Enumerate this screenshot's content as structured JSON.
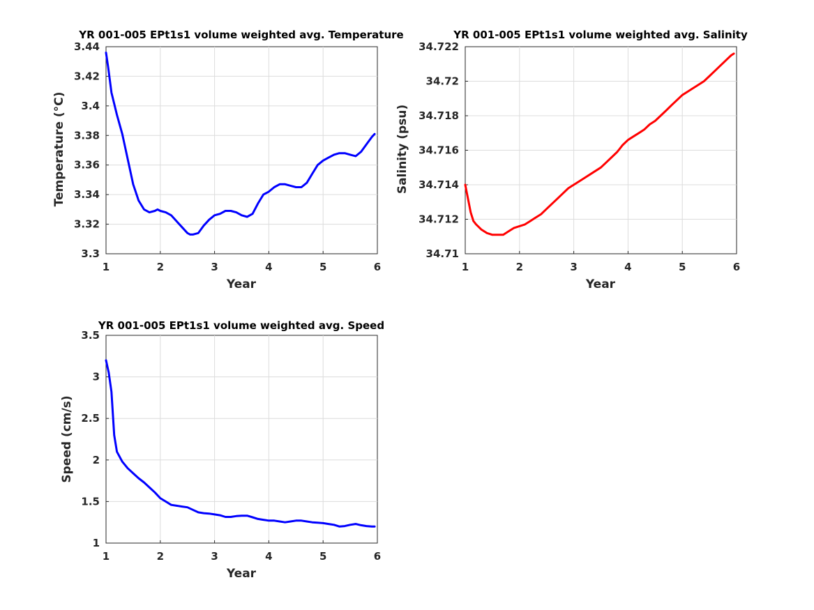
{
  "chart_data": [
    {
      "type": "line",
      "title": "YR 001-005 EPt1s1 volume weighted avg. Temperature",
      "xlabel": "Year",
      "ylabel": "Temperature (°C)",
      "xlim": [
        1,
        6
      ],
      "ylim": [
        3.3,
        3.44
      ],
      "xticks": [
        "1",
        "2",
        "3",
        "4",
        "5",
        "6"
      ],
      "yticks": [
        "3.3",
        "3.32",
        "3.34",
        "3.36",
        "3.38",
        "3.4",
        "3.42",
        "3.44"
      ],
      "grid": true,
      "color": "#0000ff",
      "series": [
        {
          "x": [
            1.0,
            1.04,
            1.1,
            1.2,
            1.3,
            1.4,
            1.5,
            1.6,
            1.7,
            1.8,
            1.9,
            1.95,
            2.0,
            2.1,
            2.2,
            2.3,
            2.4,
            2.5,
            2.55,
            2.6,
            2.7,
            2.8,
            2.9,
            3.0,
            3.1,
            3.2,
            3.3,
            3.4,
            3.5,
            3.6,
            3.7,
            3.8,
            3.9,
            4.0,
            4.1,
            4.2,
            4.3,
            4.4,
            4.5,
            4.6,
            4.7,
            4.8,
            4.9,
            5.0,
            5.1,
            5.2,
            5.3,
            5.4,
            5.5,
            5.6,
            5.7,
            5.8,
            5.9,
            5.95
          ],
          "y": [
            3.436,
            3.426,
            3.409,
            3.394,
            3.381,
            3.364,
            3.347,
            3.336,
            3.33,
            3.328,
            3.329,
            3.33,
            3.329,
            3.328,
            3.326,
            3.322,
            3.318,
            3.314,
            3.313,
            3.313,
            3.314,
            3.319,
            3.323,
            3.326,
            3.327,
            3.329,
            3.329,
            3.328,
            3.326,
            3.325,
            3.327,
            3.334,
            3.34,
            3.342,
            3.345,
            3.347,
            3.347,
            3.346,
            3.345,
            3.345,
            3.348,
            3.354,
            3.36,
            3.363,
            3.365,
            3.367,
            3.368,
            3.368,
            3.367,
            3.366,
            3.369,
            3.374,
            3.379,
            3.381
          ]
        }
      ]
    },
    {
      "type": "line",
      "title": "YR 001-005 EPt1s1 volume weighted avg. Salinity",
      "xlabel": "Year",
      "ylabel": "Salinity (psu)",
      "xlim": [
        1,
        6
      ],
      "ylim": [
        34.71,
        34.722
      ],
      "xticks": [
        "1",
        "2",
        "3",
        "4",
        "5",
        "6"
      ],
      "yticks": [
        "34.71",
        "34.712",
        "34.714",
        "34.716",
        "34.718",
        "34.72",
        "34.722"
      ],
      "grid": true,
      "color": "#ff0000",
      "series": [
        {
          "x": [
            1.0,
            1.05,
            1.1,
            1.15,
            1.2,
            1.3,
            1.4,
            1.5,
            1.6,
            1.7,
            1.8,
            1.9,
            2.0,
            2.1,
            2.2,
            2.3,
            2.4,
            2.5,
            2.6,
            2.7,
            2.8,
            2.9,
            3.0,
            3.1,
            3.2,
            3.3,
            3.4,
            3.5,
            3.6,
            3.7,
            3.8,
            3.9,
            4.0,
            4.1,
            4.2,
            4.3,
            4.4,
            4.5,
            4.6,
            4.7,
            4.8,
            4.9,
            5.0,
            5.1,
            5.2,
            5.3,
            5.4,
            5.5,
            5.6,
            5.7,
            5.8,
            5.9,
            5.95
          ],
          "y": [
            34.714,
            34.7132,
            34.7124,
            34.7119,
            34.7117,
            34.7114,
            34.7112,
            34.7111,
            34.7111,
            34.7111,
            34.7113,
            34.7115,
            34.7116,
            34.7117,
            34.7119,
            34.7121,
            34.7123,
            34.7126,
            34.7129,
            34.7132,
            34.7135,
            34.7138,
            34.714,
            34.7142,
            34.7144,
            34.7146,
            34.7148,
            34.715,
            34.7153,
            34.7156,
            34.7159,
            34.7163,
            34.7166,
            34.7168,
            34.717,
            34.7172,
            34.7175,
            34.7177,
            34.718,
            34.7183,
            34.7186,
            34.7189,
            34.7192,
            34.7194,
            34.7196,
            34.7198,
            34.72,
            34.7203,
            34.7206,
            34.7209,
            34.7212,
            34.7215,
            34.7216
          ]
        }
      ]
    },
    {
      "type": "line",
      "title": "YR 001-005 EPt1s1 volume weighted avg. Speed",
      "xlabel": "Year",
      "ylabel": "Speed (cm/s)",
      "xlim": [
        1,
        6
      ],
      "ylim": [
        1,
        3.5
      ],
      "xticks": [
        "1",
        "2",
        "3",
        "4",
        "5",
        "6"
      ],
      "yticks": [
        "1",
        "1.5",
        "2",
        "2.5",
        "3",
        "3.5"
      ],
      "grid": true,
      "color": "#0000ff",
      "series": [
        {
          "x": [
            1.0,
            1.05,
            1.1,
            1.15,
            1.2,
            1.3,
            1.4,
            1.5,
            1.6,
            1.7,
            1.8,
            1.9,
            2.0,
            2.1,
            2.2,
            2.3,
            2.4,
            2.5,
            2.6,
            2.7,
            2.8,
            2.9,
            3.0,
            3.1,
            3.2,
            3.3,
            3.4,
            3.5,
            3.6,
            3.7,
            3.8,
            3.9,
            4.0,
            4.1,
            4.2,
            4.3,
            4.4,
            4.5,
            4.6,
            4.7,
            4.8,
            4.9,
            5.0,
            5.1,
            5.2,
            5.3,
            5.4,
            5.5,
            5.6,
            5.7,
            5.8,
            5.9,
            5.95
          ],
          "y": [
            3.2,
            3.05,
            2.82,
            2.3,
            2.1,
            1.98,
            1.9,
            1.84,
            1.78,
            1.73,
            1.67,
            1.61,
            1.54,
            1.5,
            1.46,
            1.45,
            1.44,
            1.43,
            1.4,
            1.37,
            1.36,
            1.355,
            1.345,
            1.335,
            1.315,
            1.315,
            1.325,
            1.33,
            1.33,
            1.31,
            1.29,
            1.28,
            1.27,
            1.27,
            1.26,
            1.25,
            1.26,
            1.27,
            1.27,
            1.26,
            1.25,
            1.245,
            1.24,
            1.23,
            1.22,
            1.2,
            1.205,
            1.22,
            1.23,
            1.215,
            1.205,
            1.2,
            1.2
          ]
        }
      ]
    }
  ]
}
